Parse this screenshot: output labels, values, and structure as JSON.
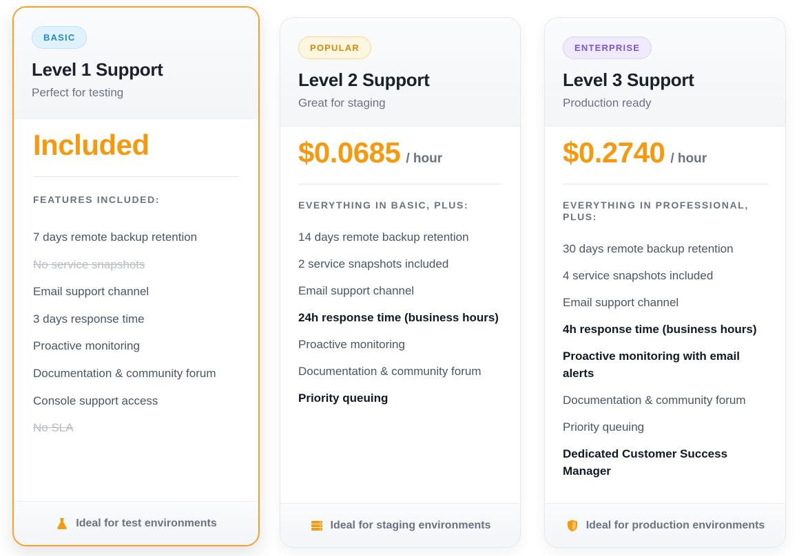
{
  "plans": [
    {
      "badge": "BASIC",
      "title": "Level 1 Support",
      "subtitle": "Perfect for testing",
      "price": "Included",
      "price_unit": "",
      "features_title": "FEATURES INCLUDED:",
      "features": [
        {
          "text": "7 days remote backup retention",
          "style": "normal"
        },
        {
          "text": "No service snapshots",
          "style": "strike"
        },
        {
          "text": "Email support channel",
          "style": "normal"
        },
        {
          "text": "3 days response time",
          "style": "normal"
        },
        {
          "text": "Proactive monitoring",
          "style": "normal"
        },
        {
          "text": "Documentation & community forum",
          "style": "normal"
        },
        {
          "text": "Console support access",
          "style": "normal"
        },
        {
          "text": "No SLA",
          "style": "strike"
        }
      ],
      "footer": "Ideal for test environments",
      "footer_icon": "flask-icon"
    },
    {
      "badge": "POPULAR",
      "title": "Level 2 Support",
      "subtitle": "Great for staging",
      "price": "$0.0685",
      "price_unit": "/ hour",
      "features_title": "EVERYTHING IN BASIC, PLUS:",
      "features": [
        {
          "text": "14 days remote backup retention",
          "style": "normal"
        },
        {
          "text": "2 service snapshots included",
          "style": "normal"
        },
        {
          "text": "Email support channel",
          "style": "normal"
        },
        {
          "text": "24h response time (business hours)",
          "style": "bold"
        },
        {
          "text": "Proactive monitoring",
          "style": "normal"
        },
        {
          "text": "Documentation & community forum",
          "style": "normal"
        },
        {
          "text": "Priority queuing",
          "style": "bold"
        }
      ],
      "footer": "Ideal for staging environments",
      "footer_icon": "server-icon"
    },
    {
      "badge": "ENTERPRISE",
      "title": "Level 3 Support",
      "subtitle": "Production ready",
      "price": "$0.2740",
      "price_unit": "/ hour",
      "features_title": "EVERYTHING IN PROFESSIONAL, PLUS:",
      "features": [
        {
          "text": "30 days remote backup retention",
          "style": "normal"
        },
        {
          "text": "4 service snapshots included",
          "style": "normal"
        },
        {
          "text": "Email support channel",
          "style": "normal"
        },
        {
          "text": "4h response time (business hours)",
          "style": "bold"
        },
        {
          "text": "Proactive monitoring with email alerts",
          "style": "bold"
        },
        {
          "text": "Documentation & community forum",
          "style": "normal"
        },
        {
          "text": "Priority queuing",
          "style": "normal"
        },
        {
          "text": "Dedicated Customer Success Manager",
          "style": "bold"
        }
      ],
      "footer": "Ideal for production environments",
      "footer_icon": "shield-icon"
    }
  ],
  "colors": {
    "accent": "#f5990f",
    "selected_border": "#f6a22a",
    "basic_badge": "#1c8ccd",
    "popular_badge": "#d68a10",
    "enterprise_badge": "#7a55d8"
  }
}
